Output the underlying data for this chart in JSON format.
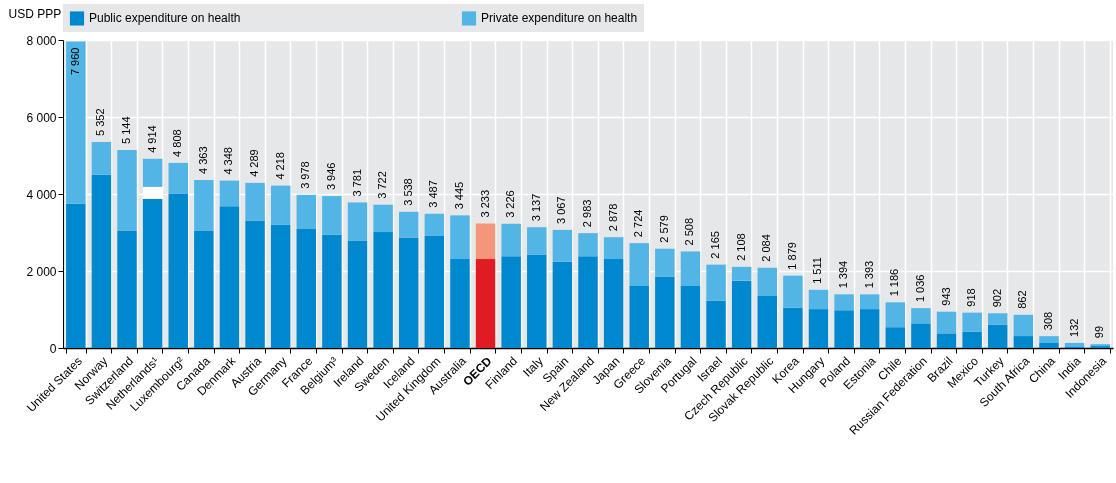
{
  "chart_data": {
    "type": "bar",
    "stacked": true,
    "ylabel": "USD PPP",
    "categories": [
      "United States",
      "Norway",
      "Switzerland",
      "Netherlands¹",
      "Luxembourg²",
      "Canada",
      "Denmark",
      "Austria",
      "Germany",
      "France",
      "Belgium³",
      "Ireland",
      "Sweden",
      "Iceland",
      "United Kingdom",
      "Australia",
      "OECD",
      "Finland",
      "Italy",
      "Spain",
      "New Zealand",
      "Japan",
      "Greece",
      "Slovenia",
      "Portugal",
      "Israel",
      "Czech Republic",
      "Slovak Republic",
      "Korea",
      "Hungary",
      "Poland",
      "Estonia",
      "Chile",
      "Russian Federation",
      "Brazil",
      "Mexico",
      "Turkey",
      "South Africa",
      "China",
      "India",
      "Indonesia"
    ],
    "series": [
      {
        "name": "Public expenditure on health",
        "color": "#0088cf",
        "colors": [
          "#0088cf",
          "#0088cf",
          "#0088cf",
          "#0088cf",
          "#0088cf",
          "#0088cf",
          "#0088cf",
          "#0088cf",
          "#0088cf",
          "#0088cf",
          "#0088cf",
          "#0088cf",
          "#0088cf",
          "#0088cf",
          "#0088cf",
          "#0088cf",
          "#e11b22",
          "#0088cf",
          "#0088cf",
          "#0088cf",
          "#0088cf",
          "#0088cf",
          "#0088cf",
          "#0088cf",
          "#0088cf",
          "#0088cf",
          "#0088cf",
          "#0088cf",
          "#0088cf",
          "#0088cf",
          "#0088cf",
          "#0088cf",
          "#0088cf",
          "#0088cf",
          "#0088cf",
          "#0088cf",
          "#0088cf",
          "#0088cf",
          "#0088cf",
          "#0088cf",
          "#0088cf"
        ],
        "values": [
          3750,
          4500,
          3050,
          3870,
          4010,
          3050,
          3680,
          3310,
          3200,
          3090,
          2940,
          2790,
          3010,
          2870,
          2910,
          2310,
          2310,
          2380,
          2420,
          2240,
          2380,
          2310,
          1610,
          1860,
          1610,
          1230,
          1750,
          1350,
          1050,
          1010,
          980,
          1010,
          540,
          640,
          380,
          420,
          600,
          310,
          130,
          40,
          50
        ]
      },
      {
        "color": "#ffffff",
        "values": [
          null,
          null,
          null,
          315,
          null,
          null,
          null,
          null,
          null,
          null,
          null,
          null,
          null,
          null,
          null,
          null,
          null,
          null,
          null,
          null,
          null,
          null,
          null,
          null,
          null,
          null,
          null,
          null,
          null,
          null,
          null,
          null,
          null,
          null,
          null,
          null,
          null,
          null,
          null,
          null,
          null
        ]
      },
      {
        "name": "Private expenditure on health",
        "color": "#52b5e6",
        "colors": [
          "#52b5e6",
          "#52b5e6",
          "#52b5e6",
          "#52b5e6",
          "#52b5e6",
          "#52b5e6",
          "#52b5e6",
          "#52b5e6",
          "#52b5e6",
          "#52b5e6",
          "#52b5e6",
          "#52b5e6",
          "#52b5e6",
          "#52b5e6",
          "#52b5e6",
          "#52b5e6",
          "#f4967a",
          "#52b5e6",
          "#52b5e6",
          "#52b5e6",
          "#52b5e6",
          "#52b5e6",
          "#52b5e6",
          "#52b5e6",
          "#52b5e6",
          "#52b5e6",
          "#52b5e6",
          "#52b5e6",
          "#52b5e6",
          "#52b5e6",
          "#52b5e6",
          "#52b5e6",
          "#52b5e6",
          "#52b5e6",
          "#52b5e6",
          "#52b5e6",
          "#52b5e6",
          "#52b5e6",
          "#52b5e6",
          "#52b5e6",
          "#52b5e6"
        ],
        "values": [
          4210,
          852,
          2094,
          729,
          798,
          1313,
          668,
          979,
          1018,
          888,
          1006,
          991,
          712,
          668,
          577,
          1135,
          923,
          846,
          717,
          827,
          603,
          568,
          1114,
          719,
          898,
          935,
          358,
          734,
          829,
          501,
          414,
          383,
          646,
          396,
          563,
          498,
          302,
          552,
          178,
          92,
          49
        ]
      }
    ],
    "totals": [
      "7 960",
      "5 352",
      "5 144",
      "4 914",
      "4 808",
      "4 363",
      "4 348",
      "4 289",
      "4 218",
      "3 978",
      "3 946",
      "3 781",
      "3 722",
      "3 538",
      "3 487",
      "3 445",
      "3 233",
      "3 226",
      "3 137",
      "3 067",
      "2 983",
      "2 878",
      "2 724",
      "2 579",
      "2 508",
      "2 165",
      "2 108",
      "2 084",
      "1 879",
      "1 511",
      "1 394",
      "1 393",
      "1 186",
      "1 036",
      "943",
      "918",
      "902",
      "862",
      "308",
      "132",
      "99"
    ],
    "ylim": [
      0,
      8000
    ],
    "yticks": [
      0,
      2000,
      4000,
      6000,
      8000
    ],
    "grid": true,
    "legend": "top"
  }
}
